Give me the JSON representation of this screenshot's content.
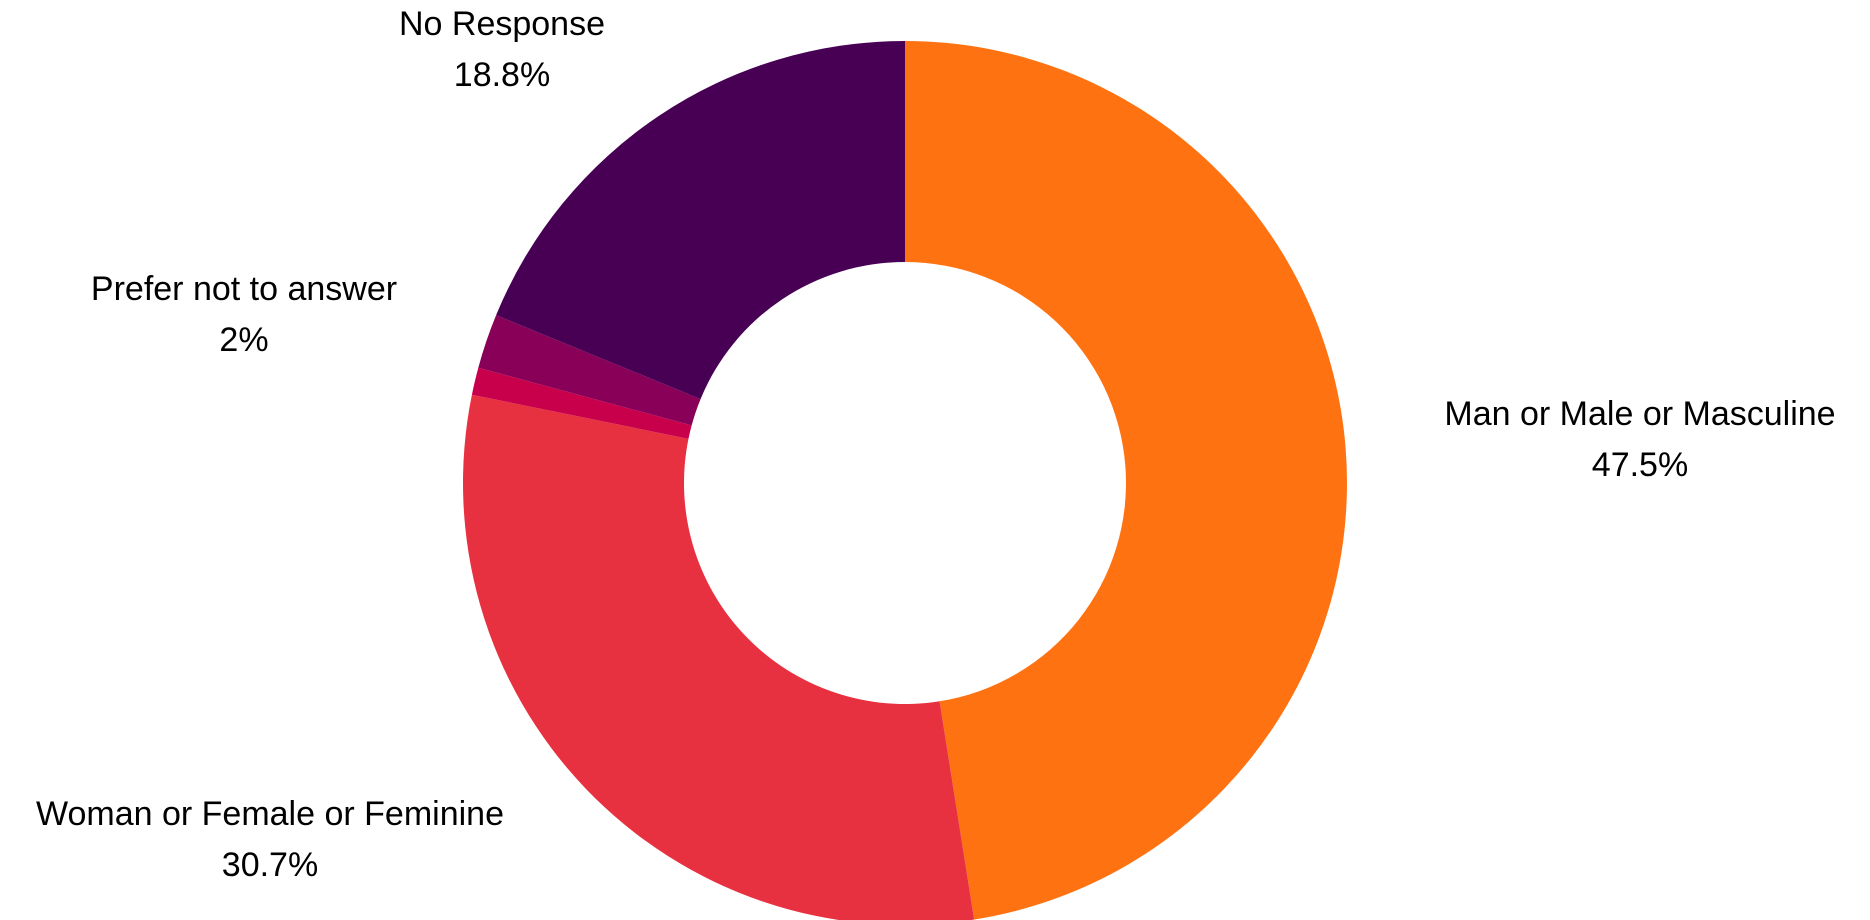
{
  "chart_data": {
    "type": "pie",
    "donut": true,
    "title": "",
    "slices": [
      {
        "label": "Man or Male or Masculine",
        "value": 47.5,
        "display": "47.5%",
        "color": "#FF7212"
      },
      {
        "label": "Woman or Female or Feminine",
        "value": 30.7,
        "display": "30.7%",
        "color": "#E83140"
      },
      {
        "label": "",
        "value": 1.0,
        "display": "",
        "color": "#C8004C"
      },
      {
        "label": "Prefer not to answer",
        "value": 2.0,
        "display": "2%",
        "color": "#880058"
      },
      {
        "label": "No Response",
        "value": 18.8,
        "display": "18.8%",
        "color": "#480055"
      }
    ],
    "start_angle": "top",
    "direction": "clockwise",
    "legend": "none"
  }
}
